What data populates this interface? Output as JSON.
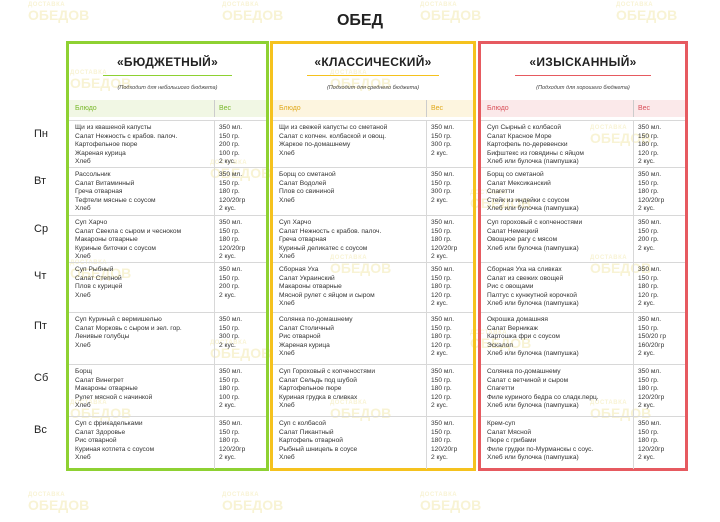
{
  "title": "ОБЕД",
  "watermark": {
    "small": "ДОСТАВКА",
    "big": "ОБЕДОВ"
  },
  "days": [
    "Пн",
    "Вт",
    "Ср",
    "Чт",
    "Пт",
    "Сб",
    "Вс"
  ],
  "columns": [
    {
      "name": "«БЮДЖЕТНЫЙ»",
      "subtitle": "(Подходит для небольшого бюджета)",
      "header": {
        "dish": "Блюдо",
        "weight": "Вес"
      },
      "accent": "#8ed132",
      "days": [
        {
          "dishes": [
            "Щи из квашеной капусты",
            "Салат Нежность с крабов. палоч.",
            "Картофельное пюре",
            "Жареная курица",
            "Хлеб"
          ],
          "weights": [
            "350 мл.",
            "150 гр.",
            "200 гр.",
            "100 гр.",
            "2 кус."
          ]
        },
        {
          "dishes": [
            "Рассольник",
            "Салат Витаминный",
            "Греча отварная",
            "Тефтели мясные с соусом",
            "Хлеб"
          ],
          "weights": [
            "350 мл.",
            "150 гр.",
            "180 гр.",
            "120/20гр",
            "2 кус."
          ]
        },
        {
          "dishes": [
            "Суп Харчо",
            "Салат Свекла с сыром и чесноком",
            "Макароны отварные",
            "Куриные биточки с соусом",
            "Хлеб"
          ],
          "weights": [
            "350 мл.",
            "150 гр.",
            "180 гр.",
            "120/20гр",
            "2 кус."
          ]
        },
        {
          "dishes": [
            "Суп Рыбный",
            "Салат Степной",
            "Плов с курицей",
            "Хлеб"
          ],
          "weights": [
            "350 мл.",
            "150 гр.",
            "200 гр.",
            "2 кус."
          ]
        },
        {
          "dishes": [
            "Суп Куриный с вермишелью",
            "Салат Морковь с сыром и зел. гор.",
            "Ленивые голубцы",
            "Хлеб"
          ],
          "weights": [
            "350 мл.",
            "150 гр.",
            "300 гр.",
            "2 кус."
          ]
        },
        {
          "dishes": [
            "Борщ",
            "Салат Винегрет",
            "Макароны отварные",
            "Рулет мясной с начинкой",
            "Хлеб"
          ],
          "weights": [
            "350 мл.",
            "150 гр.",
            "180 гр.",
            "100 гр.",
            "2 кус."
          ]
        },
        {
          "dishes": [
            "Суп с фрикадельками",
            "Салат Здоровье",
            "Рис отварной",
            "Куриная котлета с соусом",
            "Хлеб"
          ],
          "weights": [
            "350 мл.",
            "150 гр.",
            "180 гр.",
            "120/20гр",
            "2 кус."
          ]
        }
      ]
    },
    {
      "name": "«КЛАССИЧЕСКИЙ»",
      "subtitle": "(Подходит для среднего бюджета)",
      "header": {
        "dish": "Блюдо",
        "weight": "Вес"
      },
      "accent": "#f5c21e",
      "days": [
        {
          "dishes": [
            "Щи из свежей капусты со сметаной",
            "Салат с копчен. колбаской и овощ.",
            "Жаркое по-домашнему",
            "Хлеб"
          ],
          "weights": [
            "350 мл.",
            "150 гр.",
            "300 гр.",
            "2 кус."
          ]
        },
        {
          "dishes": [
            "Борщ со сметаной",
            "Салат Водолей",
            "Плов со свининой",
            "Хлеб"
          ],
          "weights": [
            "350 мл.",
            "150 гр.",
            "300 гр.",
            "2 кус."
          ]
        },
        {
          "dishes": [
            "Суп Харчо",
            "Салат Нежность с крабов. палоч.",
            "Греча отварная",
            "Куриный деликатес с соусом",
            "Хлеб"
          ],
          "weights": [
            "350 мл.",
            "150 гр.",
            "180 гр.",
            "120/20гр",
            "2 кус."
          ]
        },
        {
          "dishes": [
            "Сборная Уха",
            "Салат Украинский",
            "Макароны отварные",
            "Мясной рулет с яйцом и сыром",
            "Хлеб"
          ],
          "weights": [
            "350 мл.",
            "150 гр.",
            "180 гр.",
            "120 гр.",
            "2 кус."
          ]
        },
        {
          "dishes": [
            "Солянка по-домашнему",
            "Салат Столичный",
            "Рис отварной",
            "Жареная курица",
            "Хлеб"
          ],
          "weights": [
            "350 мл.",
            "150 гр.",
            "180 гр.",
            "120 гр.",
            "2 кус."
          ]
        },
        {
          "dishes": [
            "Суп Гороховый с копченостями",
            "Салат Сельдь под шубой",
            "Картофельное пюре",
            "Куриная грудка в сливках",
            "Хлеб"
          ],
          "weights": [
            "350 мл.",
            "150 гр.",
            "180 гр.",
            "120 гр.",
            "2 кус."
          ]
        },
        {
          "dishes": [
            "Суп с колбасой",
            "Салат Пикантный",
            "Картофель отварной",
            "Рыбный шницель в соусе",
            "Хлеб"
          ],
          "weights": [
            "350 мл.",
            "150 гр.",
            "180 гр.",
            "120/20гр",
            "2 кус."
          ]
        }
      ]
    },
    {
      "name": "«ИЗЫСКАННЫЙ»",
      "subtitle": "(Подходит для хорошего бюджета)",
      "header": {
        "dish": "Блюдо",
        "weight": "Вес"
      },
      "accent": "#e65a60",
      "days": [
        {
          "dishes": [
            "Суп Сырный с колбасой",
            "Салат Красное Море",
            "Картофель по-деревенски",
            "Бифштекс из говядины с яйцом",
            "Хлеб или булочка (пампушка)"
          ],
          "weights": [
            "350 мл.",
            "150 гр.",
            "180 гр.",
            "120 гр.",
            "2 кус."
          ]
        },
        {
          "dishes": [
            "Борщ со сметаной",
            "Салат Мексиканский",
            "Спагетти",
            "Стейк из индейки с соусом",
            "Хлеб или булочка (пампушка)"
          ],
          "weights": [
            "350 мл.",
            "150 гр.",
            "180 гр.",
            "120/20гр",
            "2 кус."
          ]
        },
        {
          "dishes": [
            "Суп гороховый с копченостями",
            "Салат Немецкий",
            "Овощное рагу с мясом",
            "Хлеб или булочка (пампушка)"
          ],
          "weights": [
            "350 мл.",
            "150 гр.",
            "200 гр.",
            "2 кус."
          ]
        },
        {
          "dishes": [
            "Сборная Уха на сливках",
            "Салат из свежих овощей",
            "Рис с овощами",
            "Палтус с кунжутной корочкой",
            "Хлеб или булочка (пампушка)"
          ],
          "weights": [
            "350 мл.",
            "150 гр.",
            "180 гр.",
            "120 гр.",
            "2 кус."
          ]
        },
        {
          "dishes": [
            "Окрошка домашняя",
            "Салат Верникаж",
            "Картошка фри с соусом",
            "Эскалоп",
            "Хлеб или булочка (пампушка)"
          ],
          "weights": [
            "350 мл.",
            "150 гр.",
            "150/20 гр",
            "160/20гр",
            "2 кус."
          ]
        },
        {
          "dishes": [
            "Солянка по-домашнему",
            "Салат с ветчиной и сыром",
            "Спагетти",
            "Филе куриного бедра со сладк.перц.",
            "Хлеб или булочка (пампушка)"
          ],
          "weights": [
            "350 мл.",
            "150 гр.",
            "180 гр.",
            "120/20гр",
            "2 кус."
          ]
        },
        {
          "dishes": [
            "Крем-суп",
            "Салат Мясной",
            "Пюре с грибами",
            "Филе грудки по-Мурманскы с соус.",
            "Хлеб или булочка (пампушка)"
          ],
          "weights": [
            "350 мл.",
            "150 гр.",
            "180 гр.",
            "120/20гр",
            "2 кус."
          ]
        }
      ]
    }
  ]
}
